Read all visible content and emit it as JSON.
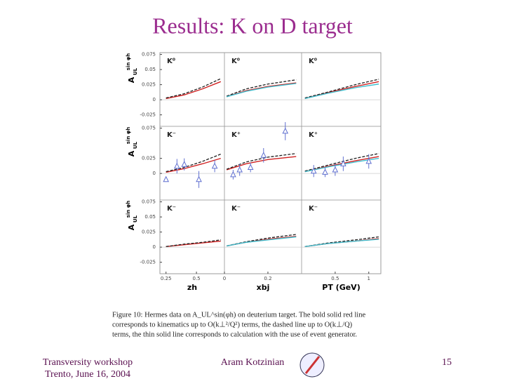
{
  "title": "Results: K on D target",
  "caption": {
    "lines": [
      "Figure 10: Hermes data on A_UL^sin(φh) on deuterium target. The bold solid red line",
      "corresponds to kinematics up to O(k⊥²/Q²) terms, the dashed line up to O(k⊥/Q)",
      "terms, the thin solid line corresponds to calculation with the use of event generator."
    ]
  },
  "footer": {
    "left": [
      "Transversity workshop",
      "Trento, June 16, 2004"
    ],
    "center": "Aram Kotzinian",
    "page": "15"
  },
  "chart_data": [
    {
      "type": "line",
      "title": "K⁰",
      "ylim": [
        -0.044,
        0.078
      ],
      "yticks": [
        0.075,
        0.05,
        0.025,
        0,
        -0.025
      ],
      "y_label": {
        "main": "A",
        "sub": "UL",
        "sup": "sin φh"
      },
      "xlim": [
        0.2,
        0.73
      ],
      "x": [
        0.25,
        0.4,
        0.55,
        0.7
      ],
      "series": [
        {
          "color": "#d02020",
          "values": [
            0.002,
            0.008,
            0.018,
            0.03
          ]
        },
        {
          "color": "#202020",
          "dash": true,
          "values": [
            0.003,
            0.01,
            0.021,
            0.035
          ]
        }
      ]
    },
    {
      "type": "line",
      "title": "K⁰",
      "ylim": [
        -0.044,
        0.078
      ],
      "xlim": [
        0,
        0.355
      ],
      "x": [
        0.01,
        0.1,
        0.2,
        0.33
      ],
      "series": [
        {
          "color": "#d02020",
          "values": [
            0.005,
            0.015,
            0.022,
            0.028
          ]
        },
        {
          "color": "#202020",
          "dash": true,
          "values": [
            0.006,
            0.018,
            0.026,
            0.033
          ]
        },
        {
          "color": "#40c0d0",
          "values": [
            0.005,
            0.014,
            0.021,
            0.027
          ]
        }
      ]
    },
    {
      "type": "line",
      "title": "K⁰",
      "ylim": [
        -0.044,
        0.078
      ],
      "xlim": [
        0,
        1.18
      ],
      "x": [
        0.05,
        0.4,
        0.8,
        1.15
      ],
      "series": [
        {
          "color": "#d02020",
          "values": [
            0.002,
            0.012,
            0.022,
            0.03
          ]
        },
        {
          "color": "#202020",
          "dash": true,
          "values": [
            0.003,
            0.013,
            0.025,
            0.034
          ]
        },
        {
          "color": "#40c0d0",
          "values": [
            0.002,
            0.011,
            0.02,
            0.026
          ]
        }
      ]
    },
    {
      "type": "line",
      "title": "K⁻",
      "ylim": [
        -0.044,
        0.078
      ],
      "yticks": [
        0.075,
        0.025,
        0
      ],
      "y_label": {
        "main": "A",
        "sub": "UL",
        "sup": "sin φh"
      },
      "xlim": [
        0.2,
        0.73
      ],
      "x": [
        0.25,
        0.4,
        0.55,
        0.7
      ],
      "series": [
        {
          "color": "#d02020",
          "values": [
            0.002,
            0.008,
            0.016,
            0.025
          ]
        },
        {
          "color": "#202020",
          "dash": true,
          "values": [
            0.003,
            0.01,
            0.02,
            0.032
          ]
        },
        {
          "color": "#6070d0",
          "points": true,
          "x": [
            0.25,
            0.34,
            0.4,
            0.52,
            0.65
          ],
          "values": [
            -0.01,
            0.012,
            0.015,
            -0.01,
            0.012
          ],
          "errors": [
            0.004,
            0.012,
            0.01,
            0.014,
            0.01
          ]
        }
      ]
    },
    {
      "type": "line",
      "title": "K⁺",
      "ylim": [
        -0.044,
        0.078
      ],
      "xlim": [
        0,
        0.355
      ],
      "x": [
        0.01,
        0.1,
        0.2,
        0.33
      ],
      "series": [
        {
          "color": "#d02020",
          "values": [
            0.006,
            0.016,
            0.023,
            0.028
          ]
        },
        {
          "color": "#202020",
          "dash": true,
          "values": [
            0.007,
            0.019,
            0.027,
            0.033
          ]
        },
        {
          "color": "#6070d0",
          "points": true,
          "x": [
            0.04,
            0.07,
            0.12,
            0.18,
            0.28
          ],
          "values": [
            -0.002,
            0.006,
            0.01,
            0.03,
            0.07
          ],
          "errors": [
            0.008,
            0.01,
            0.008,
            0.012,
            0.015
          ]
        }
      ]
    },
    {
      "type": "line",
      "title": "K⁺",
      "ylim": [
        -0.044,
        0.078
      ],
      "xlim": [
        0,
        1.18
      ],
      "x": [
        0.05,
        0.4,
        0.8,
        1.15
      ],
      "series": [
        {
          "color": "#d02020",
          "values": [
            0.003,
            0.012,
            0.021,
            0.028
          ]
        },
        {
          "color": "#202020",
          "dash": true,
          "values": [
            0.004,
            0.014,
            0.025,
            0.033
          ]
        },
        {
          "color": "#40c0d0",
          "values": [
            0.003,
            0.011,
            0.019,
            0.025
          ]
        },
        {
          "color": "#6070d0",
          "points": true,
          "x": [
            0.18,
            0.35,
            0.5,
            0.62,
            1.0
          ],
          "values": [
            0.004,
            0.002,
            0.006,
            0.016,
            0.02
          ],
          "errors": [
            0.01,
            0.008,
            0.01,
            0.012,
            0.012
          ]
        }
      ]
    },
    {
      "type": "line",
      "title": "K⁻",
      "ylim": [
        -0.044,
        0.078
      ],
      "yticks": [
        0.075,
        0.05,
        0.025,
        0,
        -0.025
      ],
      "y_label": {
        "main": "A",
        "sub": "UL",
        "sup": "sin φh"
      },
      "xlim": [
        0.2,
        0.73
      ],
      "xticks": [
        0.25,
        0.5
      ],
      "x_label": "zh",
      "x": [
        0.25,
        0.4,
        0.55,
        0.7
      ],
      "series": [
        {
          "color": "#d02020",
          "values": [
            0.001,
            0.004,
            0.007,
            0.01
          ]
        },
        {
          "color": "#202020",
          "dash": true,
          "values": [
            0.001,
            0.005,
            0.008,
            0.012
          ]
        }
      ]
    },
    {
      "type": "line",
      "title": "K⁻",
      "ylim": [
        -0.044,
        0.078
      ],
      "xlim": [
        0,
        0.355
      ],
      "xticks": [
        0,
        0.2
      ],
      "x_label": "xbj",
      "x": [
        0.01,
        0.1,
        0.2,
        0.33
      ],
      "series": [
        {
          "color": "#d02020",
          "values": [
            0.002,
            0.008,
            0.013,
            0.018
          ]
        },
        {
          "color": "#202020",
          "dash": true,
          "values": [
            0.002,
            0.009,
            0.015,
            0.021
          ]
        },
        {
          "color": "#40c0d0",
          "values": [
            0.002,
            0.008,
            0.012,
            0.017
          ]
        }
      ]
    },
    {
      "type": "line",
      "title": "K⁻",
      "ylim": [
        -0.044,
        0.078
      ],
      "xlim": [
        0,
        1.18
      ],
      "xticks": [
        0.5,
        1
      ],
      "x_label": "PT (GeV)",
      "x": [
        0.05,
        0.4,
        0.8,
        1.15
      ],
      "series": [
        {
          "color": "#d02020",
          "values": [
            0.001,
            0.006,
            0.01,
            0.014
          ]
        },
        {
          "color": "#202020",
          "dash": true,
          "values": [
            0.001,
            0.007,
            0.012,
            0.017
          ]
        },
        {
          "color": "#40c0d0",
          "values": [
            0.001,
            0.006,
            0.01,
            0.013
          ]
        }
      ]
    }
  ]
}
